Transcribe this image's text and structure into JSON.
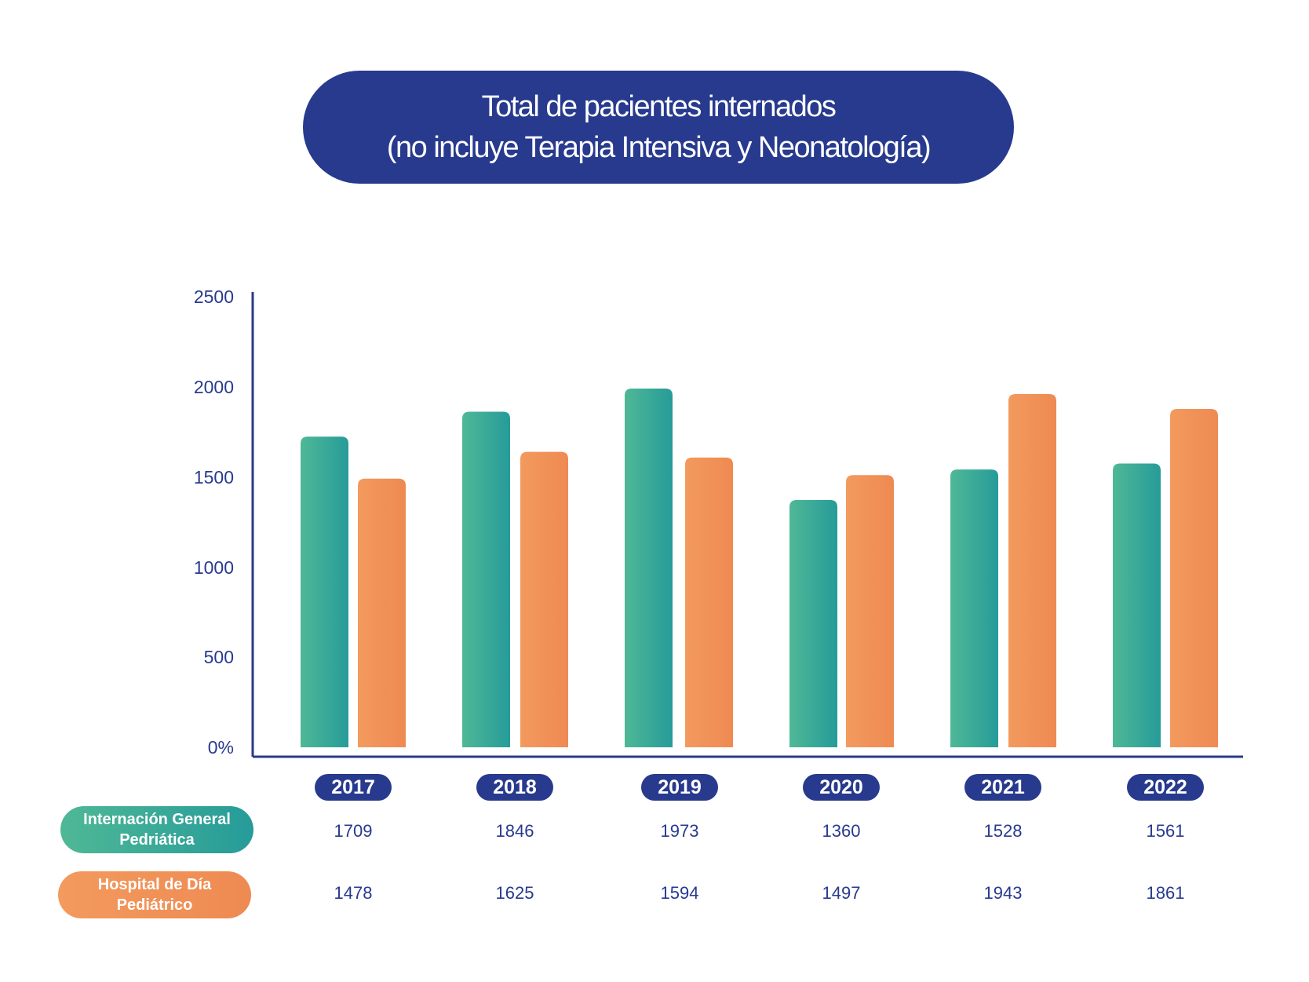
{
  "title": {
    "line1": "Total de pacientes internados",
    "line2": "(no incluye Terapia Intensiva y Neonatología)"
  },
  "colors": {
    "navy": "#283a8e",
    "teal_start": "#4fb896",
    "teal_end": "#269b99",
    "orange_start": "#f39a5e",
    "orange_end": "#ee8a52"
  },
  "chart_data": {
    "type": "bar",
    "title": "Total de pacientes internados (no incluye Terapia Intensiva y Neonatología)",
    "categories": [
      "2017",
      "2018",
      "2019",
      "2020",
      "2021",
      "2022"
    ],
    "series": [
      {
        "name": "Internación General Pedriática",
        "values": [
          1709,
          1846,
          1973,
          1360,
          1528,
          1561
        ]
      },
      {
        "name": "Hospital de Día Pediátrico",
        "values": [
          1478,
          1625,
          1594,
          1497,
          1943,
          1861
        ]
      }
    ],
    "yticks": [
      "0%",
      "500",
      "1000",
      "1500",
      "2000",
      "2500"
    ],
    "ylim": [
      0,
      2500
    ],
    "grid": false,
    "legend": "bottom-left table"
  },
  "legend": {
    "series1_line1": "Internación General",
    "series1_line2": "Pedriática",
    "series2_line1": "Hospital de Día",
    "series2_line2": "Pediátrico"
  }
}
